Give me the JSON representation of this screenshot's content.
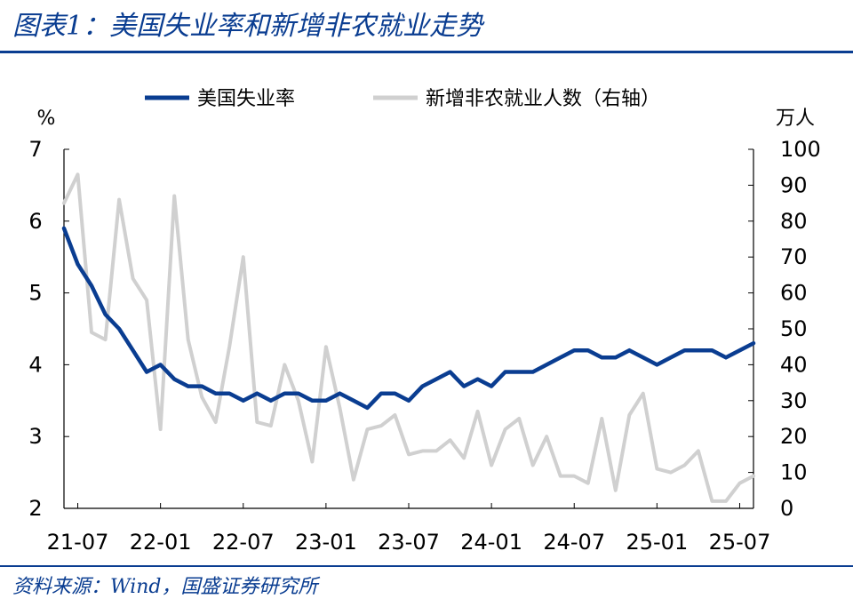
{
  "header": {
    "title": "图表1：美国失业率和新增非农就业走势"
  },
  "footer": {
    "source": "资料来源：Wind，国盛证券研究所"
  },
  "chart_data": {
    "type": "line",
    "left_unit": "%",
    "right_unit": "万人",
    "legend_position": "top",
    "grid": false,
    "x_ticks": [
      "21-07",
      "22-01",
      "22-07",
      "23-01",
      "23-07",
      "24-01",
      "24-07",
      "25-01",
      "25-07"
    ],
    "y_left": {
      "lim": [
        2,
        7
      ],
      "ticks": [
        2,
        3,
        4,
        5,
        6,
        7
      ]
    },
    "y_right": {
      "lim": [
        0,
        100
      ],
      "ticks": [
        0,
        10,
        20,
        30,
        40,
        50,
        60,
        70,
        80,
        90,
        100
      ]
    },
    "colors": {
      "unemployment": "#0a3d91",
      "payrolls": "#d0d0d0",
      "rule": "#0a3d91"
    },
    "x": [
      "2021-06",
      "2021-07",
      "2021-08",
      "2021-09",
      "2021-10",
      "2021-11",
      "2021-12",
      "2022-01",
      "2022-02",
      "2022-03",
      "2022-04",
      "2022-05",
      "2022-06",
      "2022-07",
      "2022-08",
      "2022-09",
      "2022-10",
      "2022-11",
      "2022-12",
      "2023-01",
      "2023-02",
      "2023-03",
      "2023-04",
      "2023-05",
      "2023-06",
      "2023-07",
      "2023-08",
      "2023-09",
      "2023-10",
      "2023-11",
      "2023-12",
      "2024-01",
      "2024-02",
      "2024-03",
      "2024-04",
      "2024-05",
      "2024-06",
      "2024-07",
      "2024-08",
      "2024-09",
      "2024-10",
      "2024-11",
      "2024-12",
      "2025-01",
      "2025-02",
      "2025-03",
      "2025-04",
      "2025-05",
      "2025-06",
      "2025-07",
      "2025-08"
    ],
    "series": [
      {
        "name": "美国失业率",
        "axis": "left",
        "values": [
          5.9,
          5.4,
          5.1,
          4.7,
          4.5,
          4.2,
          3.9,
          4.0,
          3.8,
          3.7,
          3.7,
          3.6,
          3.6,
          3.5,
          3.6,
          3.5,
          3.6,
          3.6,
          3.5,
          3.5,
          3.6,
          3.5,
          3.4,
          3.6,
          3.6,
          3.5,
          3.7,
          3.8,
          3.9,
          3.7,
          3.8,
          3.7,
          3.9,
          3.9,
          3.9,
          4.0,
          4.1,
          4.2,
          4.2,
          4.1,
          4.1,
          4.2,
          4.1,
          4.0,
          4.1,
          4.2,
          4.2,
          4.2,
          4.1,
          4.2,
          4.3
        ]
      },
      {
        "name": "新增非农就业人数（右轴）",
        "axis": "right",
        "values": [
          85,
          93,
          49,
          47,
          86,
          64,
          58,
          22,
          87,
          47,
          31,
          24,
          45,
          70,
          24,
          23,
          40,
          30,
          13,
          45,
          28,
          8,
          22,
          23,
          26,
          15,
          16,
          16,
          19,
          14,
          27,
          12,
          22,
          25,
          12,
          20,
          9,
          9,
          7,
          25,
          5,
          26,
          32,
          11,
          10,
          12,
          16,
          2,
          2,
          7,
          9
        ]
      }
    ]
  }
}
